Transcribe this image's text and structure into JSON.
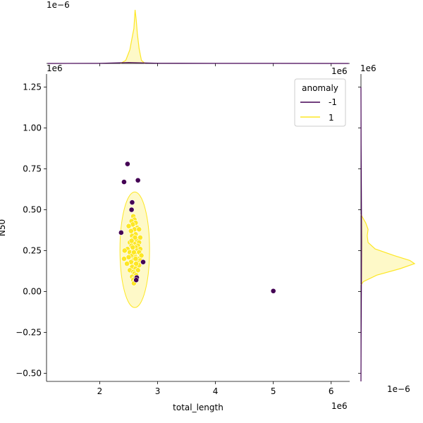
{
  "chart_data": {
    "type": "scatter",
    "title": "",
    "xlabel": "total_length",
    "ylabel": "N50",
    "x_offset_label": "1e6",
    "y_offset_label": "1e6",
    "marg_x_offset_label": "1e−6",
    "marg_y_offset_label": "1e−6",
    "marg_x_tick_offset": "1e6",
    "marg_y_tick_offset": "1e6",
    "xlim": [
      1.08,
      6.32
    ],
    "ylim": [
      -0.55,
      1.33
    ],
    "x_ticks": [
      2,
      3,
      4,
      5,
      6
    ],
    "y_ticks": [
      -0.5,
      -0.25,
      0.0,
      0.25,
      0.5,
      0.75,
      1.0,
      1.25
    ],
    "x_tick_labels": [
      "2",
      "3",
      "4",
      "5",
      "6"
    ],
    "y_tick_labels": [
      "−0.50",
      "−0.25",
      "0.00",
      "0.25",
      "0.50",
      "0.75",
      "1.00",
      "1.25"
    ],
    "grid": false,
    "legend": {
      "title": "anomaly",
      "placement": "top-right",
      "entries": [
        {
          "label": "-1",
          "color": "#440154"
        },
        {
          "label": "1",
          "color": "#fde725"
        }
      ]
    },
    "series": [
      {
        "name": "-1",
        "color": "#440154",
        "points": [
          [
            2.48,
            0.78
          ],
          [
            2.42,
            0.67
          ],
          [
            2.66,
            0.68
          ],
          [
            2.56,
            0.545
          ],
          [
            2.55,
            0.5
          ],
          [
            2.37,
            0.36
          ],
          [
            2.75,
            0.18
          ],
          [
            2.64,
            0.085
          ],
          [
            2.63,
            0.07
          ],
          [
            5.0,
            0.003
          ]
        ]
      },
      {
        "name": "1",
        "color": "#fde725",
        "points": [
          [
            2.58,
            0.46
          ],
          [
            2.6,
            0.44
          ],
          [
            2.55,
            0.43
          ],
          [
            2.62,
            0.42
          ],
          [
            2.57,
            0.41
          ],
          [
            2.5,
            0.4
          ],
          [
            2.65,
            0.39
          ],
          [
            2.6,
            0.38
          ],
          [
            2.54,
            0.37
          ],
          [
            2.68,
            0.38
          ],
          [
            2.62,
            0.35
          ],
          [
            2.56,
            0.34
          ],
          [
            2.7,
            0.33
          ],
          [
            2.58,
            0.32
          ],
          [
            2.64,
            0.31
          ],
          [
            2.52,
            0.3
          ],
          [
            2.68,
            0.3
          ],
          [
            2.6,
            0.29
          ],
          [
            2.55,
            0.28
          ],
          [
            2.66,
            0.28
          ],
          [
            2.62,
            0.27
          ],
          [
            2.48,
            0.26
          ],
          [
            2.7,
            0.26
          ],
          [
            2.58,
            0.25
          ],
          [
            2.64,
            0.25
          ],
          [
            2.43,
            0.25
          ],
          [
            2.52,
            0.24
          ],
          [
            2.68,
            0.24
          ],
          [
            2.6,
            0.23
          ],
          [
            2.56,
            0.22
          ],
          [
            2.72,
            0.22
          ],
          [
            2.62,
            0.21
          ],
          [
            2.5,
            0.21
          ],
          [
            2.66,
            0.2
          ],
          [
            2.42,
            0.2
          ],
          [
            2.58,
            0.19
          ],
          [
            2.7,
            0.19
          ],
          [
            2.54,
            0.18
          ],
          [
            2.64,
            0.18
          ],
          [
            2.47,
            0.17
          ],
          [
            2.6,
            0.16
          ],
          [
            2.68,
            0.16
          ],
          [
            2.56,
            0.15
          ],
          [
            2.62,
            0.14
          ],
          [
            2.52,
            0.13
          ],
          [
            2.66,
            0.13
          ],
          [
            2.58,
            0.12
          ],
          [
            2.6,
            0.11
          ],
          [
            2.63,
            0.1
          ],
          [
            2.56,
            0.09
          ],
          [
            2.6,
            0.08
          ],
          [
            2.58,
            0.07
          ],
          [
            2.61,
            0.06
          ],
          [
            2.59,
            0.05
          ],
          [
            2.62,
            0.2
          ],
          [
            2.57,
            0.27
          ],
          [
            2.61,
            0.33
          ],
          [
            2.59,
            0.24
          ],
          [
            2.63,
            0.17
          ],
          [
            2.55,
            0.31
          ]
        ]
      }
    ],
    "marginal_x": {
      "type": "kde",
      "series": [
        {
          "name": "1",
          "color": "#fde725",
          "x": [
            2.36,
            2.45,
            2.52,
            2.56,
            2.59,
            2.61,
            2.63,
            2.65,
            2.68,
            2.72,
            2.78
          ],
          "density": [
            0,
            0.5,
            2.2,
            4.2,
            5.6,
            8.6,
            7.0,
            4.8,
            2.4,
            0.5,
            0
          ]
        },
        {
          "name": "-1",
          "color": "#440154",
          "x": [
            1.1,
            2.0,
            2.5,
            3.0,
            4.0,
            5.0,
            6.3
          ],
          "density": [
            0,
            0.02,
            0.15,
            0.03,
            0.01,
            0.01,
            0
          ]
        }
      ]
    },
    "marginal_y": {
      "type": "kde",
      "series": [
        {
          "name": "1",
          "color": "#fde725",
          "y": [
            0.47,
            0.42,
            0.38,
            0.34,
            0.3,
            0.26,
            0.22,
            0.19,
            0.17,
            0.14,
            0.1,
            0.06,
            0.04
          ],
          "density": [
            0,
            0.6,
            0.9,
            0.8,
            0.9,
            1.8,
            4.2,
            6.2,
            6.8,
            5.0,
            2.0,
            0.3,
            0
          ]
        },
        {
          "name": "-1",
          "color": "#440154",
          "y": [
            1.25,
            0.9,
            0.6,
            0.3,
            0.0,
            -0.3,
            -0.55
          ],
          "density": [
            0,
            0.02,
            0.05,
            0.08,
            0.05,
            0.02,
            0
          ]
        }
      ]
    }
  }
}
